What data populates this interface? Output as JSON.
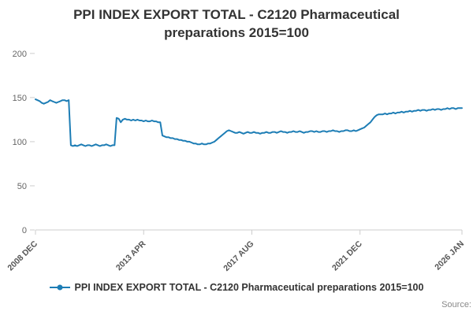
{
  "title": "PPI INDEX EXPORT TOTAL - C2120 Pharmaceutical preparations 2015=100",
  "legend": {
    "label": "PPI INDEX EXPORT TOTAL - C2120 Pharmaceutical preparations 2015=100"
  },
  "source_label": "Source:",
  "colors": {
    "line": "#1d7db5",
    "axis": "#cccccc",
    "tick_label": "#666666",
    "title": "#333333"
  },
  "chart_data": {
    "type": "line",
    "title": "PPI INDEX EXPORT TOTAL - C2120 Pharmaceutical preparations 2015=100",
    "xlabel": "",
    "ylabel": "",
    "x_start": "2008 DEC",
    "x_end": "2026 JAN",
    "frequency": "monthly",
    "x_tick_labels": [
      "2008 DEC",
      "2013 APR",
      "2017 AUG",
      "2021 DEC",
      "2026 JAN"
    ],
    "x_tick_indices": [
      0,
      52,
      104,
      156,
      205
    ],
    "y_ticks": [
      0,
      50,
      100,
      150,
      200
    ],
    "ylim": [
      0,
      207
    ],
    "grid": false,
    "legend_position": "bottom",
    "series": [
      {
        "name": "PPI INDEX EXPORT TOTAL - C2120 Pharmaceutical preparations 2015=100",
        "values": [
          148,
          147,
          146,
          144,
          143,
          144,
          145,
          147,
          146,
          145,
          144,
          145,
          146,
          147,
          147,
          146,
          147,
          96,
          95,
          96,
          95,
          96,
          97,
          96,
          95,
          96,
          96,
          95,
          96,
          97,
          96,
          95,
          96,
          96,
          97,
          96,
          95,
          96,
          96,
          127,
          126,
          122,
          125,
          126,
          125,
          125,
          124,
          125,
          124,
          125,
          124,
          124,
          123,
          124,
          123,
          123,
          124,
          123,
          123,
          122,
          122,
          107,
          106,
          105,
          105,
          104,
          104,
          103,
          103,
          102,
          102,
          101,
          101,
          100,
          100,
          99,
          98,
          98,
          97,
          97,
          98,
          97,
          97,
          98,
          98,
          99,
          100,
          102,
          104,
          106,
          108,
          110,
          112,
          113,
          112,
          111,
          110,
          110,
          111,
          110,
          109,
          110,
          111,
          110,
          110,
          111,
          110,
          110,
          109,
          110,
          110,
          111,
          110,
          110,
          111,
          111,
          110,
          111,
          112,
          111,
          111,
          110,
          111,
          111,
          112,
          111,
          111,
          112,
          111,
          110,
          111,
          111,
          112,
          112,
          111,
          112,
          111,
          111,
          112,
          112,
          111,
          112,
          112,
          113,
          112,
          112,
          111,
          112,
          112,
          113,
          113,
          112,
          112,
          113,
          112,
          113,
          114,
          115,
          116,
          118,
          120,
          122,
          125,
          128,
          130,
          131,
          131,
          131,
          132,
          131,
          132,
          132,
          133,
          132,
          133,
          133,
          134,
          133,
          134,
          134,
          135,
          134,
          135,
          135,
          136,
          135,
          136,
          136,
          135,
          136,
          136,
          137,
          136,
          137,
          137,
          136,
          137,
          137,
          138,
          137,
          138,
          138,
          137,
          138,
          138,
          138
        ]
      }
    ]
  }
}
